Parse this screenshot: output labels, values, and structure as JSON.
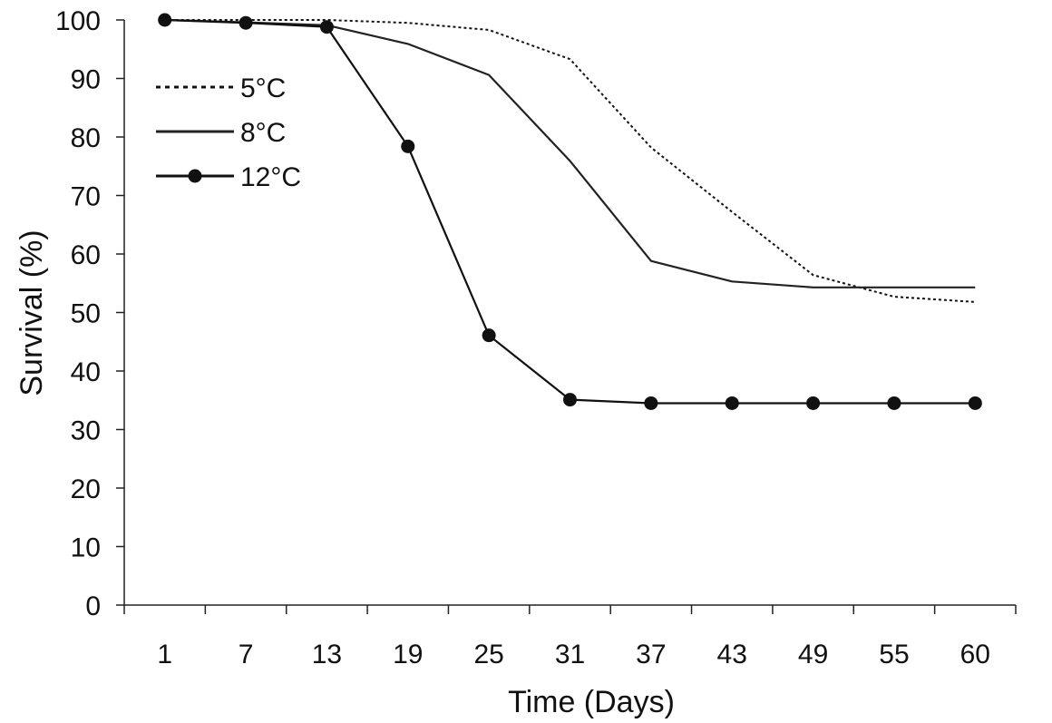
{
  "chart_data": {
    "type": "line",
    "title": "",
    "xlabel": "Time (Days)",
    "ylabel": "Survival (%)",
    "categories": [
      "1",
      "7",
      "13",
      "19",
      "25",
      "31",
      "37",
      "43",
      "49",
      "55",
      "60"
    ],
    "ylim": [
      0,
      100
    ],
    "yticks": [
      "0",
      "10",
      "20",
      "30",
      "40",
      "50",
      "60",
      "70",
      "80",
      "90",
      "100"
    ],
    "grid": false,
    "legend_position": "top-left",
    "series": [
      {
        "name": "5°C",
        "style": "dotted",
        "color": "#111111",
        "values": [
          100,
          100,
          100,
          99.5,
          98.3,
          93.3,
          78.2,
          67.2,
          56.4,
          52.7,
          51.8
        ]
      },
      {
        "name": "8°C",
        "style": "solid",
        "color": "#222222",
        "values": [
          100,
          99.6,
          99.1,
          95.9,
          90.6,
          75.9,
          58.8,
          55.3,
          54.3,
          54.3,
          54.3
        ]
      },
      {
        "name": "12°C",
        "style": "solid-markers",
        "color": "#111111",
        "values": [
          100,
          99.5,
          98.8,
          78.4,
          46.1,
          35.1,
          34.5,
          34.5,
          34.5,
          34.5,
          34.5
        ]
      }
    ]
  }
}
